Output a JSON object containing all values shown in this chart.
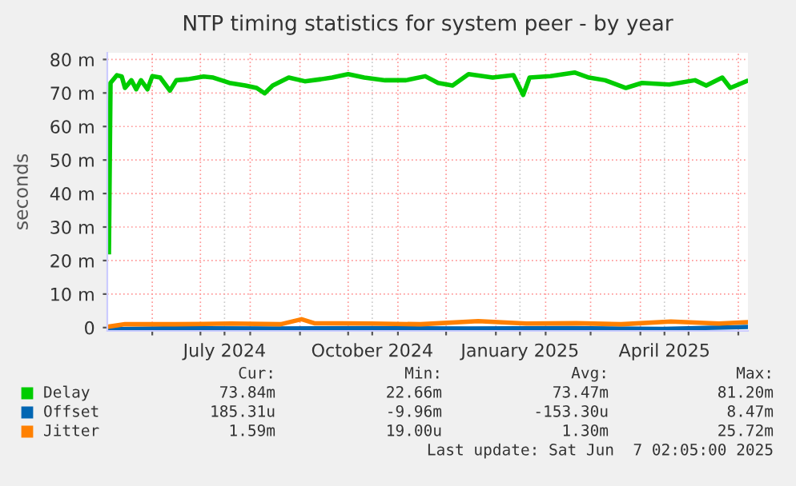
{
  "chart_data": {
    "type": "line",
    "title": "NTP timing statistics for system peer - by year",
    "ylabel": "seconds",
    "series": [
      {
        "name": "Delay",
        "color": "#00cc00",
        "x": [
          "2024-05-05",
          "2024-05-06",
          "2024-05-10",
          "2024-05-13",
          "2024-05-15",
          "2024-05-19",
          "2024-05-22",
          "2024-05-25",
          "2024-05-29",
          "2024-06-01",
          "2024-06-06",
          "2024-06-12",
          "2024-06-16",
          "2024-06-23",
          "2024-07-03",
          "2024-07-09",
          "2024-07-19",
          "2024-07-29",
          "2024-08-05",
          "2024-08-10",
          "2024-08-15",
          "2024-08-25",
          "2024-09-04",
          "2024-09-14",
          "2024-09-21",
          "2024-10-01",
          "2024-10-11",
          "2024-10-24",
          "2024-11-06",
          "2024-11-18",
          "2024-11-26",
          "2024-12-05",
          "2024-12-15",
          "2024-12-30",
          "2025-01-12",
          "2025-01-18",
          "2025-01-22",
          "2025-02-04",
          "2025-02-19",
          "2025-02-28",
          "2025-03-10",
          "2025-03-23",
          "2025-04-02",
          "2025-04-19",
          "2025-05-05",
          "2025-05-12",
          "2025-05-22",
          "2025-05-27",
          "2025-06-06"
        ],
        "values": [
          22.5,
          73,
          75.3,
          74.9,
          71.5,
          73.8,
          71.1,
          73.8,
          71.1,
          75.0,
          74.6,
          70.7,
          73.8,
          74.1,
          74.9,
          74.6,
          73.0,
          72.2,
          71.5,
          69.9,
          72.2,
          74.6,
          73.5,
          74.1,
          74.6,
          75.6,
          74.6,
          73.8,
          73.8,
          75.0,
          73.0,
          72.2,
          75.6,
          74.6,
          75.3,
          69.4,
          74.6,
          75.0,
          76.1,
          74.6,
          73.8,
          71.5,
          73.0,
          72.5,
          73.8,
          72.2,
          74.6,
          71.5,
          73.5
        ]
      },
      {
        "name": "Offset",
        "color": "#0066b3",
        "x": [
          "2024-05-05",
          "2024-06-15",
          "2024-08-15",
          "2024-10-15",
          "2024-12-15",
          "2025-02-15",
          "2025-04-15",
          "2025-06-06"
        ],
        "values": [
          -0.5,
          -0.2,
          -0.3,
          -0.2,
          -0.3,
          -0.2,
          -0.4,
          0.2
        ]
      },
      {
        "name": "Jitter",
        "color": "#ff8000",
        "x": [
          "2024-05-05",
          "2024-05-15",
          "2024-06-15",
          "2024-07-20",
          "2024-08-20",
          "2024-09-02",
          "2024-09-10",
          "2024-10-15",
          "2024-11-15",
          "2024-12-21",
          "2025-01-20",
          "2025-02-20",
          "2025-03-20",
          "2025-04-20",
          "2025-05-20",
          "2025-06-06"
        ],
        "values": [
          0.3,
          1.0,
          1.0,
          1.2,
          1.0,
          2.5,
          1.3,
          1.2,
          1.0,
          1.9,
          1.2,
          1.3,
          1.0,
          1.8,
          1.2,
          1.6
        ]
      }
    ],
    "xlim": [
      "2024-05-04",
      "2025-06-07"
    ],
    "xticks": [
      {
        "value": "2024-06-01",
        "label": null
      },
      {
        "value": "2024-07-01",
        "label": null
      },
      {
        "value": "2024-07-16",
        "label": "July 2024"
      },
      {
        "value": "2024-08-01",
        "label": null
      },
      {
        "value": "2024-09-01",
        "label": null
      },
      {
        "value": "2024-10-01",
        "label": null
      },
      {
        "value": "2024-10-16",
        "label": "October 2024"
      },
      {
        "value": "2024-11-01",
        "label": null
      },
      {
        "value": "2024-12-01",
        "label": null
      },
      {
        "value": "2025-01-01",
        "label": null
      },
      {
        "value": "2025-01-16",
        "label": "January 2025"
      },
      {
        "value": "2025-02-01",
        "label": null
      },
      {
        "value": "2025-03-01",
        "label": null
      },
      {
        "value": "2025-04-01",
        "label": null
      },
      {
        "value": "2025-04-16",
        "label": "April 2025"
      },
      {
        "value": "2025-05-01",
        "label": null
      },
      {
        "value": "2025-06-01",
        "label": null
      }
    ],
    "ylim": [
      -1,
      82
    ],
    "yticks": [
      0,
      {
        "value": 10,
        "label": "10 m"
      },
      {
        "value": 20,
        "label": "20 m"
      },
      {
        "value": 30,
        "label": "30 m"
      },
      {
        "value": 40,
        "label": "40 m"
      },
      {
        "value": 50,
        "label": "50 m"
      },
      {
        "value": 60,
        "label": "60 m"
      },
      {
        "value": 70,
        "label": "70 m"
      },
      {
        "value": 80,
        "label": "80 m"
      }
    ],
    "grid": true,
    "legend": "bottom",
    "line_style": "solid",
    "marker": "none",
    "annotations": [
      "Cur:",
      "Min:",
      "Avg:",
      "Max:",
      "73.84m",
      "22.66m",
      "73.47m",
      "81.20m",
      "185.31u",
      "-9.96m",
      "-153.30u",
      "8.47m",
      "1.59m",
      "19.00u",
      "1.30m",
      "25.72m",
      "Last update: Sat Jun  7 02:05:00 2025"
    ]
  }
}
